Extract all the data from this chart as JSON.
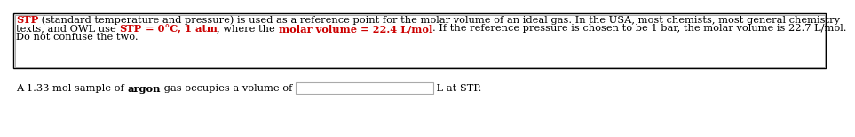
{
  "bg_color": "#ffffff",
  "border_color": "#000000",
  "font_size": 8.2,
  "line1_parts": [
    {
      "text": "STP",
      "bold": true,
      "color": "#cc0000"
    },
    {
      "text": " (standard temperature and pressure) is used as a reference point for the molar volume of an ideal gas. In the USA, most chemists, most general chemistry",
      "bold": false,
      "color": "#000000"
    }
  ],
  "line2_parts": [
    {
      "text": "texts, and OWL use ",
      "bold": false,
      "color": "#000000"
    },
    {
      "text": "STP",
      "bold": true,
      "color": "#cc0000"
    },
    {
      "text": " = 0°C, 1 atm",
      "bold": true,
      "color": "#cc0000"
    },
    {
      "text": ", where the ",
      "bold": false,
      "color": "#000000"
    },
    {
      "text": "molar volume = 22.4 L/mol",
      "bold": true,
      "color": "#cc0000"
    },
    {
      "text": ". If the reference pressure is chosen to be 1 bar, the molar volume is 22.7 L/mol.",
      "bold": false,
      "color": "#000000"
    }
  ],
  "line3_parts": [
    {
      "text": "Do not confuse the two.",
      "bold": false,
      "color": "#000000"
    }
  ],
  "question_parts": [
    {
      "text": "A 1.33 mol sample of ",
      "bold": false,
      "color": "#000000"
    },
    {
      "text": "argon",
      "bold": true,
      "color": "#000000"
    },
    {
      "text": " gas occupies a volume of ",
      "bold": false,
      "color": "#000000"
    }
  ],
  "question_suffix": " L at STP.",
  "input_box_border": "#aaaaaa"
}
